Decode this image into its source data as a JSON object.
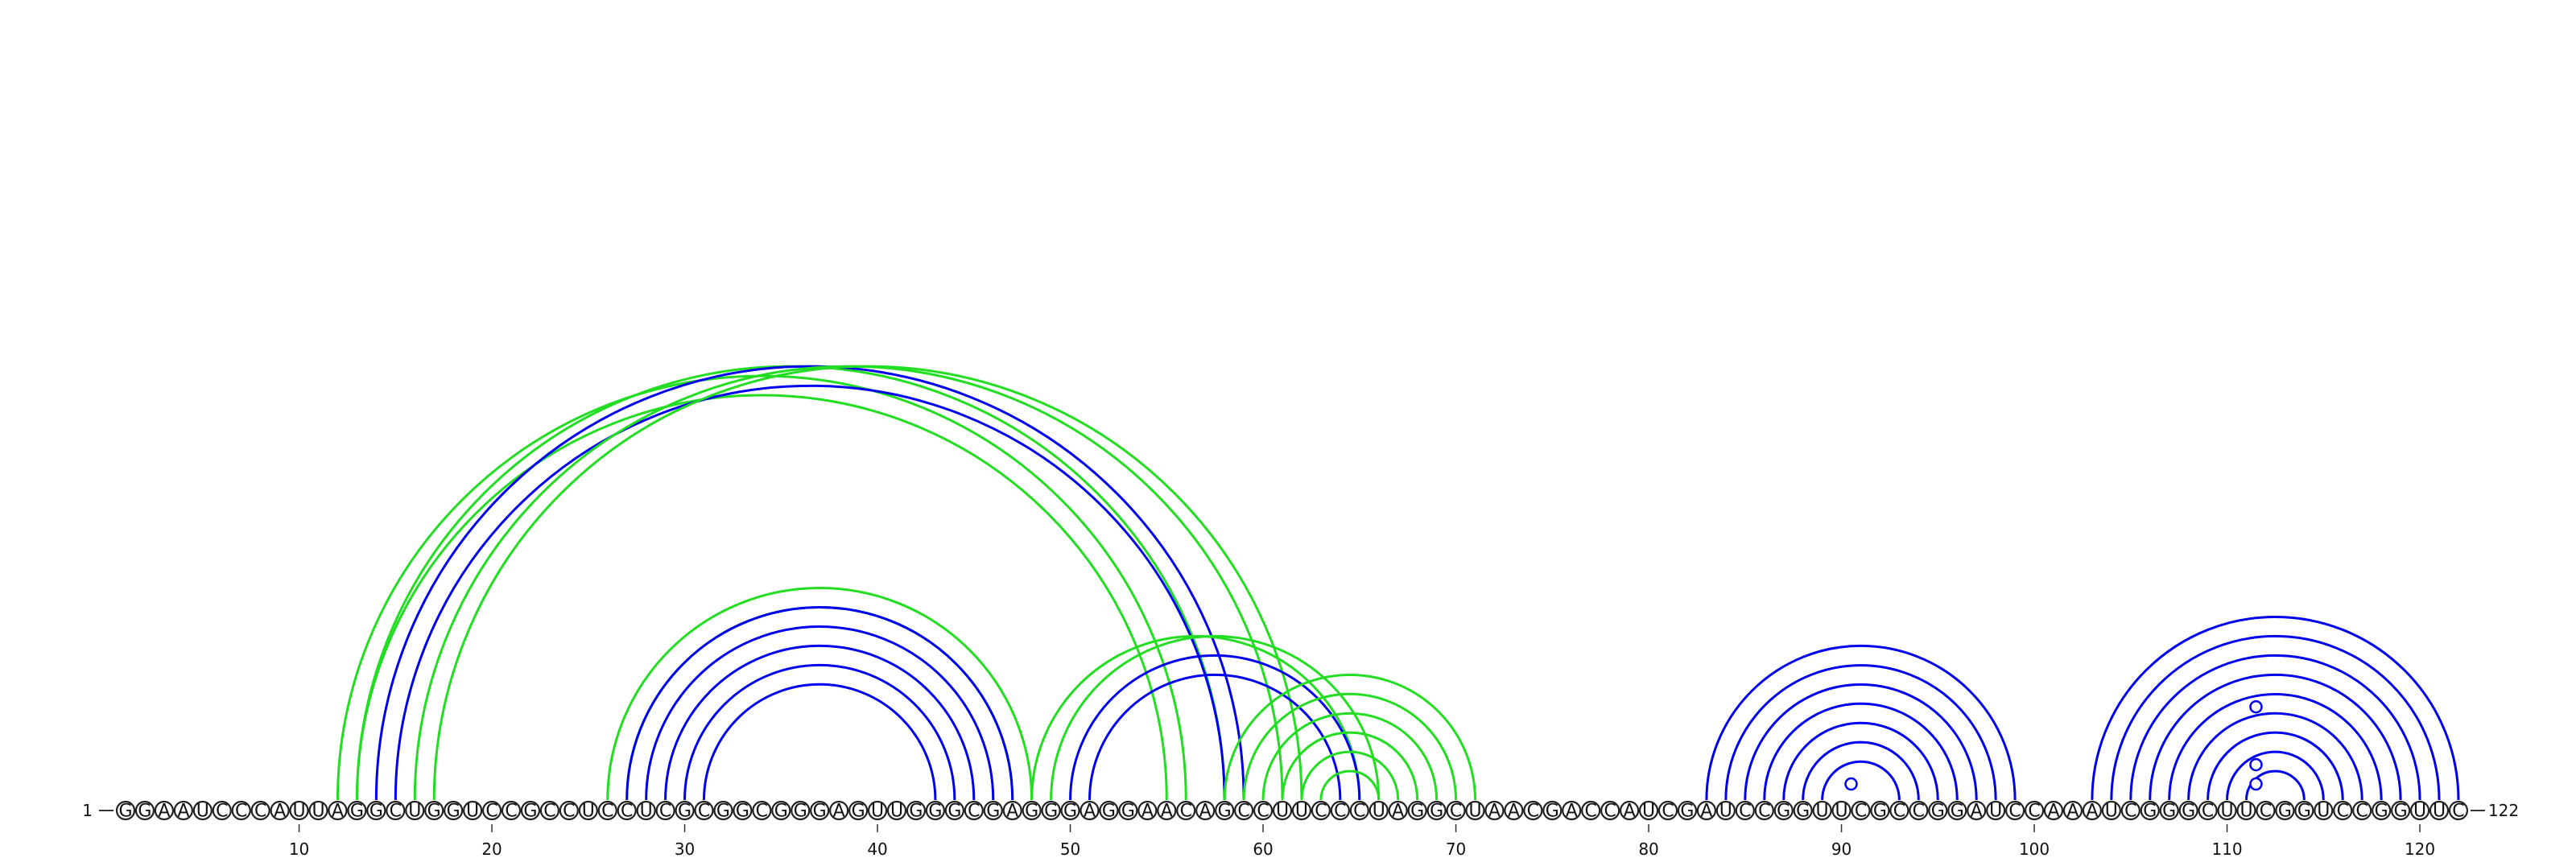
{
  "sequence": "GGAAUCCCAUUAGGCUGGUCCGCCUCCUCGCGGCGGGAGUUGGGCGAGGGAGGAACAGCCUUCCCUAGGCUAACGACCAUCGAUCCGGUUCGCCGGAUCCAAAUCGGGCUUCGGUCCGGUUC",
  "start_label": "1",
  "end_label": "122",
  "ticks": [
    10,
    20,
    30,
    40,
    50,
    60,
    70,
    80,
    90,
    100,
    110,
    120
  ],
  "colors": {
    "primary": "#0000ee",
    "alternative": "#22dd22"
  },
  "helices": [
    {
      "color": "alternative",
      "i": 12,
      "j": 56,
      "n": 2
    },
    {
      "color": "alternative",
      "i": 13,
      "j": 58,
      "n": 1
    },
    {
      "color": "primary",
      "i": 14,
      "j": 59,
      "n": 2
    },
    {
      "color": "alternative",
      "i": 16,
      "j": 61,
      "n": 1
    },
    {
      "color": "alternative",
      "i": 17,
      "j": 62,
      "n": 1
    },
    {
      "color": "alternative",
      "i": 26,
      "j": 48,
      "n": 2
    },
    {
      "color": "primary",
      "i": 27,
      "j": 47,
      "n": 5
    },
    {
      "color": "alternative",
      "i": 48,
      "j": 65,
      "n": 1
    },
    {
      "color": "alternative",
      "i": 49,
      "j": 66,
      "n": 1
    },
    {
      "color": "primary",
      "i": 50,
      "j": 65,
      "n": 2
    },
    {
      "color": "alternative",
      "i": 58,
      "j": 71,
      "n": 6
    },
    {
      "color": "primary",
      "i": 83,
      "j": 99,
      "n": 7
    },
    {
      "color": "primary",
      "i": 103,
      "j": 122,
      "n": 9
    }
  ],
  "bulges": [
    {
      "color": "primary",
      "position": 90.5,
      "level": 1
    },
    {
      "color": "primary",
      "position": 111.5,
      "level": 1
    },
    {
      "color": "primary",
      "position": 111.5,
      "level": 2
    },
    {
      "color": "primary",
      "position": 111.5,
      "level": 5
    }
  ]
}
